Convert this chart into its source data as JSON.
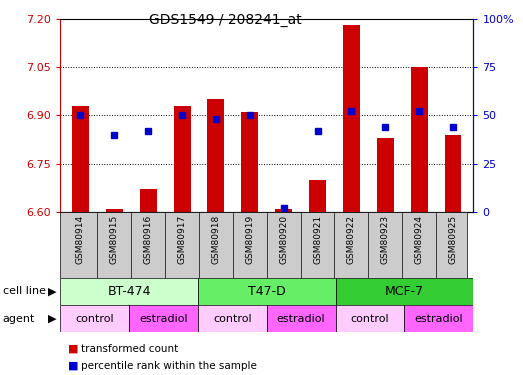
{
  "title": "GDS1549 / 208241_at",
  "samples": [
    "GSM80914",
    "GSM80915",
    "GSM80916",
    "GSM80917",
    "GSM80918",
    "GSM80919",
    "GSM80920",
    "GSM80921",
    "GSM80922",
    "GSM80923",
    "GSM80924",
    "GSM80925"
  ],
  "transformed_counts": [
    6.93,
    6.61,
    6.67,
    6.93,
    6.95,
    6.91,
    6.61,
    6.7,
    7.18,
    6.83,
    7.05,
    6.84
  ],
  "percentile_ranks": [
    50,
    40,
    42,
    50,
    48,
    50,
    2,
    42,
    52,
    44,
    52,
    44
  ],
  "ylim_left": [
    6.6,
    7.2
  ],
  "ylim_right": [
    0,
    100
  ],
  "yticks_left": [
    6.6,
    6.75,
    6.9,
    7.05,
    7.2
  ],
  "yticks_right": [
    0,
    25,
    50,
    75,
    100
  ],
  "ytick_labels_right": [
    "0",
    "25",
    "50",
    "75",
    "100%"
  ],
  "bar_color": "#cc0000",
  "marker_color": "#0000cc",
  "cell_lines": [
    {
      "label": "BT-474",
      "start": 0,
      "end": 4,
      "color": "#ccffcc"
    },
    {
      "label": "T47-D",
      "start": 4,
      "end": 8,
      "color": "#66ee66"
    },
    {
      "label": "MCF-7",
      "start": 8,
      "end": 12,
      "color": "#33cc33"
    }
  ],
  "agents": [
    {
      "label": "control",
      "start": 0,
      "end": 2,
      "color": "#ffccff"
    },
    {
      "label": "estradiol",
      "start": 2,
      "end": 4,
      "color": "#ff66ff"
    },
    {
      "label": "control",
      "start": 4,
      "end": 6,
      "color": "#ffccff"
    },
    {
      "label": "estradiol",
      "start": 6,
      "end": 8,
      "color": "#ff66ff"
    },
    {
      "label": "control",
      "start": 8,
      "end": 10,
      "color": "#ffccff"
    },
    {
      "label": "estradiol",
      "start": 10,
      "end": 12,
      "color": "#ff66ff"
    }
  ],
  "xticklabel_bg": "#cccccc",
  "grid_color": "#000000",
  "tick_color_left": "#cc0000",
  "tick_color_right": "#0000cc",
  "bar_width": 0.5
}
